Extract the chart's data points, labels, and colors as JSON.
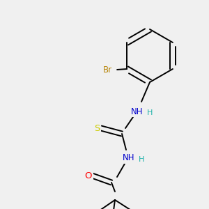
{
  "background_color": "#f0f0f0",
  "atom_colors": {
    "Br": "#b8860b",
    "N": "#0000cc",
    "S": "#cccc00",
    "O": "#ff0000",
    "C": "#000000",
    "H": "#20b2aa"
  },
  "font_size": 8.5,
  "line_width": 1.4
}
